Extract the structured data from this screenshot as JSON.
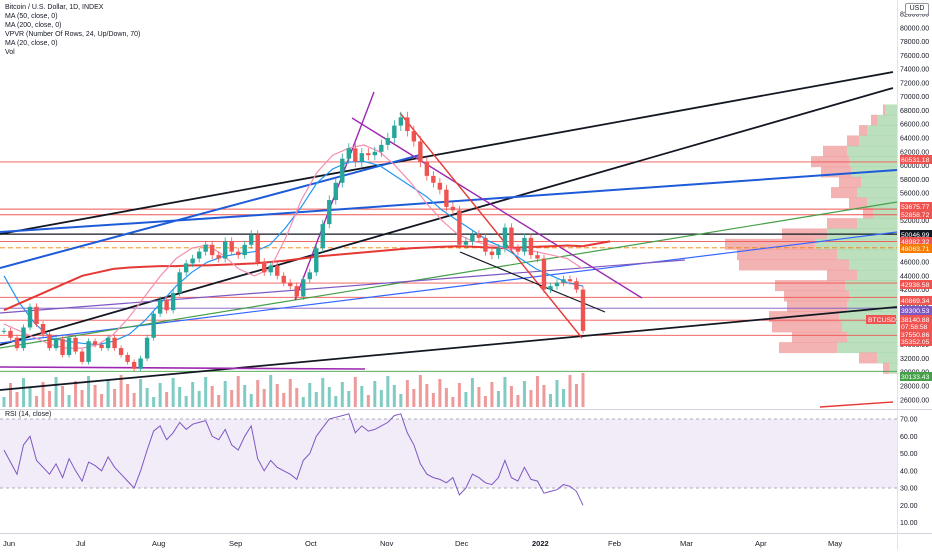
{
  "legend": {
    "title": "Bitcoin / U.S. Dollar, 1D, INDEX",
    "lines": [
      "MA (50, close, 0)",
      "MA (200, close, 0)",
      "VPVR (Number Of Rows, 24, Up/Down, 70)",
      "MA (20, close, 0)",
      "Vol"
    ]
  },
  "rsi_title": "RSI (14, close)",
  "currency_button": "USD",
  "chart_data": [
    {
      "type": "candlestick",
      "title": "Bitcoin / U.S. Dollar, 1D, INDEX",
      "x_tick_labels": [
        "Jun",
        "Jul",
        "Aug",
        "Sep",
        "Oct",
        "Nov",
        "Dec",
        "2022",
        "Feb",
        "Mar",
        "Apr",
        "May"
      ],
      "y_tick_labels": [
        "26000.00",
        "28000.00",
        "30000.00",
        "32000.00",
        "34000.00",
        "36000.00",
        "38000.00",
        "40000.00",
        "42000.00",
        "44000.00",
        "46000.00",
        "48000.00",
        "50000.00",
        "52000.00",
        "54000.00",
        "56000.00",
        "58000.00",
        "60000.00",
        "62000.00",
        "64000.00",
        "66000.00",
        "68000.00",
        "70000.00",
        "72000.00",
        "74000.00",
        "76000.00",
        "78000.00",
        "80000.00",
        "82000.00"
      ],
      "ylim": [
        26000,
        83000
      ],
      "close_series": [
        36000,
        35000,
        33500,
        36500,
        39500,
        37000,
        35500,
        33500,
        34800,
        32500,
        35000,
        33000,
        31500,
        34500,
        34000,
        33500,
        35000,
        33500,
        32500,
        31500,
        30500,
        32000,
        35000,
        38500,
        40500,
        39000,
        41500,
        44500,
        45800,
        46500,
        47500,
        48500,
        47000,
        46500,
        49000,
        47500,
        47000,
        48500,
        50000,
        46000,
        44500,
        45500,
        44000,
        43000,
        42500,
        41000,
        43500,
        44500,
        48000,
        51500,
        55000,
        57500,
        61000,
        62500,
        60500,
        61800,
        61500,
        62000,
        63000,
        64000,
        65800,
        67000,
        65000,
        63500,
        60500,
        58500,
        57500,
        56500,
        54000,
        53500,
        48500,
        49000,
        50000,
        49500,
        47500,
        47000,
        48000,
        51000,
        48000,
        47500,
        49500,
        47000,
        46500,
        42000,
        42500,
        43000,
        43500,
        43200,
        42000,
        36000
      ],
      "ma_series": [
        {
          "name": "MA (50, close, 0)",
          "color": "#2196f3",
          "values": [
            44000,
            40000,
            37000,
            35000,
            34500,
            34200,
            34000,
            34500,
            35500,
            37500,
            40000,
            42500,
            44500,
            46000,
            46800,
            47200,
            47500,
            48500,
            51000,
            54000,
            57500,
            59500,
            60500,
            60600,
            60000,
            58500,
            57000,
            55500,
            53500,
            52000,
            50500,
            49000,
            48000,
            46500,
            45000,
            44000,
            43000,
            42500
          ]
        },
        {
          "name": "MA (200, close, 0)",
          "color": "#e53935",
          "values": [
            39000,
            40000,
            41000,
            42000,
            43000,
            44000,
            44500,
            45000,
            45200,
            45300,
            45400,
            45400,
            45500,
            45500,
            45600,
            45700,
            45800,
            46000,
            46200,
            46500,
            46800,
            47000,
            47200,
            47400,
            47600,
            47800,
            48000,
            48100,
            48200,
            48300,
            48200,
            48100,
            48000,
            48100,
            48200,
            48300,
            48400,
            48300
          ]
        },
        {
          "name": "MA (20, close, 0)",
          "color": "#f48fb1",
          "values": [
            37000,
            36000,
            35000,
            34000,
            33500,
            33500,
            34000,
            35500,
            38000,
            41000,
            44000,
            46500,
            48000,
            48500,
            47000,
            45000,
            44000,
            45000,
            49500,
            55000,
            59000,
            61500,
            62500,
            63000,
            62000,
            60000,
            57500,
            54500,
            52000,
            50000,
            49000,
            48500,
            48000,
            47800,
            47500,
            47000,
            46500,
            45000
          ]
        }
      ],
      "vpvr": {
        "name": "VPVR (Number Of Rows, 24, Up/Down, 70)",
        "up_color": "#81c784",
        "down_color": "#ef5350"
      },
      "volume": {
        "name": "Vol"
      },
      "price_labels": [
        {
          "text": "60531.18",
          "color": "#ef5350"
        },
        {
          "text": "53675.77",
          "color": "#ef5350"
        },
        {
          "text": "52858.72",
          "color": "#ef5350"
        },
        {
          "text": "50046.99",
          "color": "#131722"
        },
        {
          "text": "48982.32",
          "color": "#ef5350"
        },
        {
          "text": "48063.71",
          "color": "#f57c00"
        },
        {
          "text": "42938.58",
          "color": "#ef5350"
        },
        {
          "text": "40869.34",
          "color": "#ef5350"
        },
        {
          "text": "39300.53",
          "color": "#7e57c2"
        },
        {
          "text": "38140.88",
          "color": "#ef5350"
        },
        {
          "text": "07:58:58",
          "color": "#ef5350"
        },
        {
          "text": "37550.86",
          "color": "#ef5350"
        },
        {
          "text": "35352.05",
          "color": "#ef5350"
        },
        {
          "text": "30133.43",
          "color": "#43a047"
        }
      ],
      "last_price_symbol": "BTCUSD",
      "horizontal_levels": [
        60531.18,
        53675.77,
        52858.72,
        50046.99,
        48982.32,
        48063.71,
        42938.58,
        40869.34,
        39300.53,
        37550.86,
        35352.05,
        30133.43
      ]
    },
    {
      "type": "line",
      "title": "RSI (14, close)",
      "y_tick_labels": [
        "10.00",
        "20.00",
        "30.00",
        "40.00",
        "50.00",
        "60.00",
        "70.00"
      ],
      "ylim": [
        5,
        75
      ],
      "band": [
        30,
        70
      ],
      "values": [
        52,
        45,
        38,
        55,
        60,
        46,
        42,
        38,
        44,
        36,
        47,
        40,
        34,
        45,
        43,
        40,
        48,
        42,
        38,
        34,
        30,
        40,
        52,
        63,
        66,
        58,
        62,
        68,
        64,
        67,
        68,
        69,
        60,
        58,
        64,
        55,
        52,
        60,
        66,
        47,
        40,
        46,
        42,
        40,
        38,
        35,
        46,
        50,
        60,
        65,
        70,
        71,
        72,
        73,
        62,
        66,
        63,
        64,
        66,
        68,
        72,
        73,
        62,
        55,
        44,
        38,
        36,
        35,
        33,
        36,
        26,
        30,
        38,
        36,
        33,
        32,
        36,
        46,
        36,
        34,
        42,
        35,
        34,
        27,
        28,
        29,
        32,
        31,
        28,
        20
      ],
      "color": "#7e57c2"
    }
  ]
}
